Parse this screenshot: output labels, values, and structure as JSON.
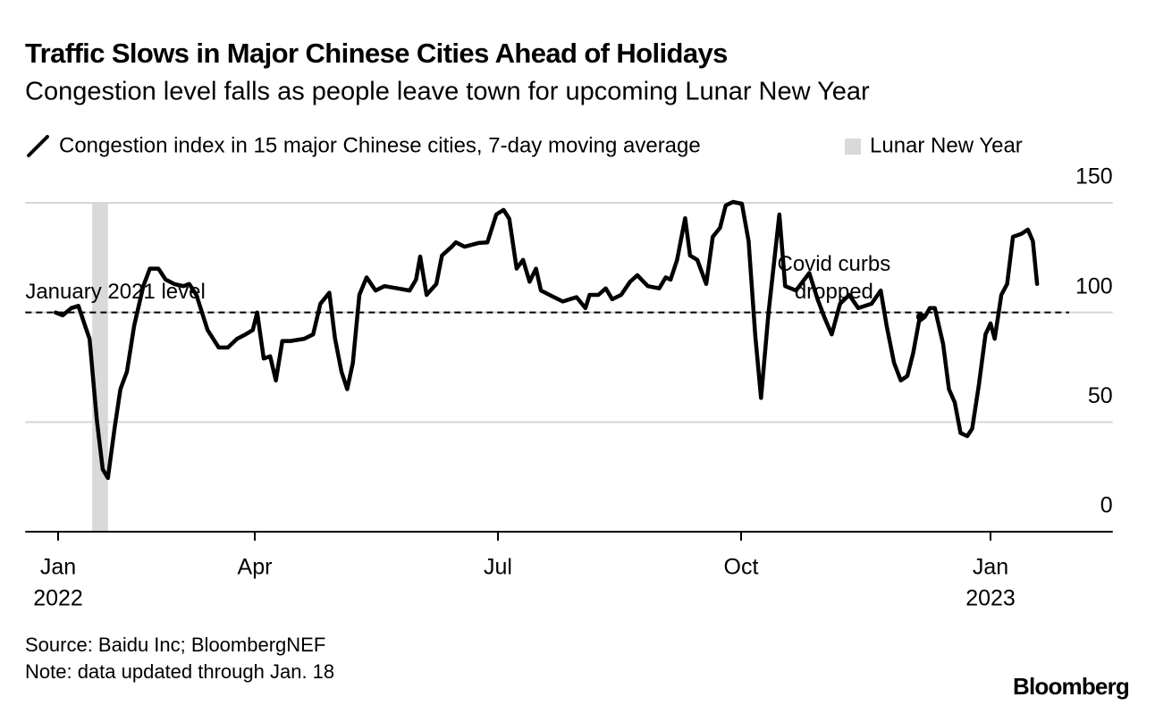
{
  "title": "Traffic Slows in Major Chinese Cities Ahead of Holidays",
  "subtitle": "Congestion level falls as people leave town for upcoming Lunar New Year",
  "source": "Source: Baidu Inc; BloombergNEF",
  "note": "Note: data updated through Jan. 18",
  "logo": "Bloomberg",
  "chart_data": {
    "type": "line",
    "x": [
      -0.04,
      0.07,
      0.2,
      0.31,
      0.41,
      0.48,
      0.59,
      0.68,
      0.76,
      0.86,
      0.95,
      1.05,
      1.16,
      1.3,
      1.4,
      1.53,
      1.64,
      1.77,
      1.91,
      2.0,
      2.11,
      2.28,
      2.45,
      2.59,
      2.73,
      2.86,
      2.97,
      3.03,
      3.11,
      3.19,
      3.26,
      3.34,
      3.44,
      3.61,
      3.72,
      3.81,
      3.92,
      3.99,
      4.07,
      4.14,
      4.21,
      4.29,
      4.38,
      4.49,
      4.6,
      4.76,
      4.91,
      4.99,
      5.04,
      5.12,
      5.24,
      5.31,
      5.43,
      5.48,
      5.59,
      5.76,
      5.87,
      5.98,
      6.07,
      6.14,
      6.23,
      6.31,
      6.39,
      6.47,
      6.53,
      6.69,
      6.8,
      6.97,
      7.08,
      7.13,
      7.24,
      7.33,
      7.41,
      7.52,
      7.63,
      7.72,
      7.85,
      7.99,
      8.07,
      8.13,
      8.21,
      8.31,
      8.37,
      8.46,
      8.57,
      8.65,
      8.74,
      8.81,
      8.9,
      9.01,
      9.09,
      9.17,
      9.24,
      9.33,
      9.46,
      9.53,
      9.66,
      9.82,
      9.92,
      10.0,
      10.09,
      10.19,
      10.3,
      10.41,
      10.57,
      10.68,
      10.75,
      10.84,
      10.92,
      11.0,
      11.07,
      11.14,
      11.21,
      11.27,
      11.33,
      11.43,
      11.5,
      11.57,
      11.64,
      11.72,
      11.78,
      11.86,
      11.94,
      12.0,
      12.05,
      12.13,
      12.2,
      12.27,
      12.37,
      12.45,
      12.51,
      12.56
    ],
    "series": [
      {
        "name": "Congestion index in 15 major Chinese cities, 7-day moving average",
        "color": "#000000",
        "values": [
          100,
          98.7,
          102,
          103,
          94,
          88,
          51,
          28.5,
          24.5,
          47,
          65,
          73,
          94,
          112,
          120,
          120,
          115,
          113,
          112,
          113,
          108,
          92,
          84,
          84,
          88,
          90,
          92,
          100,
          79,
          80,
          69,
          87,
          87,
          88,
          90,
          104,
          109,
          88,
          73,
          65,
          77,
          108,
          116,
          110,
          112,
          111,
          110,
          115,
          125.5,
          108,
          113,
          126,
          130,
          132,
          130,
          131.7,
          132,
          144.7,
          146.8,
          142.7,
          120,
          124,
          114,
          120,
          110,
          107,
          105,
          107,
          102,
          108,
          108,
          111,
          106,
          108,
          114,
          117,
          112,
          111,
          116,
          115,
          124,
          143,
          126,
          124,
          113,
          134.5,
          138.6,
          148.8,
          150.4,
          149.6,
          132.5,
          89.7,
          61,
          100,
          144.7,
          112,
          110,
          118,
          106,
          98,
          90,
          104,
          108,
          102,
          104,
          110,
          94,
          77,
          69,
          71,
          81.5,
          96,
          98,
          102,
          102,
          85.6,
          65,
          59,
          45,
          43.6,
          47,
          67,
          90,
          95,
          88,
          108,
          113,
          134.5,
          135.8,
          137.8,
          132.5,
          113
        ]
      }
    ],
    "shaded_ranges": [
      {
        "name": "Lunar New Year",
        "range": [
          0.52,
          0.76
        ],
        "color": "#d9d9d9"
      }
    ],
    "reference_line": {
      "value": 100,
      "label": "January 2021 level",
      "style": "dashed"
    },
    "annotation": {
      "text": [
        "Covid curbs",
        "dropped"
      ],
      "x": 11.16,
      "y": 98
    },
    "xlim": [
      -0.5,
      13.47
    ],
    "xticks": [
      {
        "value": 0,
        "label": "Jan"
      },
      {
        "value": 3,
        "label": "Apr"
      },
      {
        "value": 6,
        "label": "Jul"
      },
      {
        "value": 9,
        "label": "Oct"
      },
      {
        "value": 12,
        "label": "Jan"
      }
    ],
    "x_sublabels": [
      {
        "value": 0,
        "label": "2022"
      },
      {
        "value": 12,
        "label": "2023"
      }
    ],
    "ylim": [
      0,
      150
    ],
    "yticks": [
      0,
      50,
      100,
      150
    ],
    "grid": true
  }
}
